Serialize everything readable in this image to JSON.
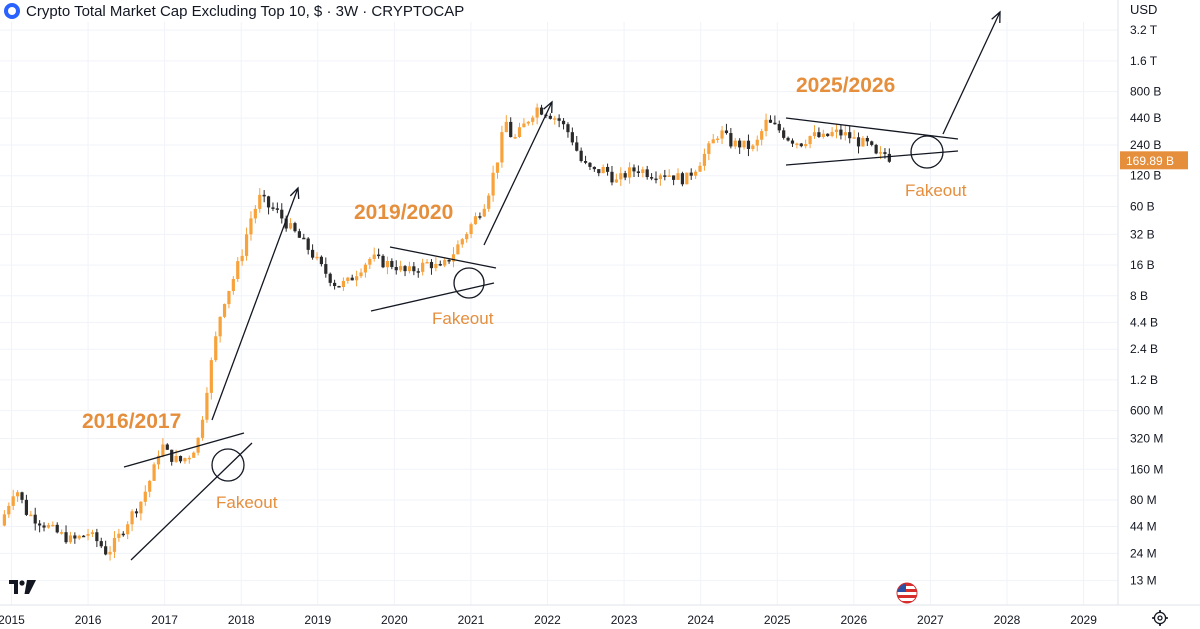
{
  "header": {
    "title": "Crypto Total Market Cap Excluding Top 10, $ · 3W · CRYPTOCAP",
    "logo_icon": "tradingview-symbol-logo-icon"
  },
  "toolbar": {
    "currency_label": "USD",
    "settings_icon": "gear-icon",
    "brand_icon": "tradingview-logo-icon",
    "flag_icon": "us-flag-icon"
  },
  "colors": {
    "up": "#f7a23b",
    "down": "#2a2a2a",
    "annotation": "#e58e3c",
    "price_tag": "#e58e3c",
    "grid": "#f0f3fa"
  },
  "chart_data": {
    "type": "candlestick",
    "title": "Crypto Total Market Cap Excluding Top 10, $ · 3W · CRYPTOCAP",
    "y_scale": "log",
    "ylim": [
      11000000,
      4500000000000
    ],
    "xlim": [
      2014.85,
      2029.45
    ],
    "y_ticks": [
      {
        "label": "3.2 T",
        "value": 3200000000000
      },
      {
        "label": "1.6 T",
        "value": 1600000000000
      },
      {
        "label": "800 B",
        "value": 800000000000
      },
      {
        "label": "440 B",
        "value": 440000000000
      },
      {
        "label": "240 B",
        "value": 240000000000
      },
      {
        "label": "120 B",
        "value": 120000000000
      },
      {
        "label": "60 B",
        "value": 60000000000
      },
      {
        "label": "32 B",
        "value": 32000000000
      },
      {
        "label": "16 B",
        "value": 16000000000
      },
      {
        "label": "8 B",
        "value": 8000000000
      },
      {
        "label": "4.4 B",
        "value": 4400000000
      },
      {
        "label": "2.4 B",
        "value": 2400000000
      },
      {
        "label": "1.2 B",
        "value": 1200000000
      },
      {
        "label": "600 M",
        "value": 600000000
      },
      {
        "label": "320 M",
        "value": 320000000
      },
      {
        "label": "160 M",
        "value": 160000000
      },
      {
        "label": "80 M",
        "value": 80000000
      },
      {
        "label": "44 M",
        "value": 44000000
      },
      {
        "label": "24 M",
        "value": 24000000
      },
      {
        "label": "13 M",
        "value": 13000000
      }
    ],
    "x_ticks": [
      "2015",
      "2016",
      "2017",
      "2018",
      "2019",
      "2020",
      "2021",
      "2022",
      "2023",
      "2024",
      "2025",
      "2026",
      "2027",
      "2028",
      "2029"
    ],
    "last_price": {
      "label": "169.89 B",
      "value": 169890000000
    },
    "close_path": [
      [
        2014.85,
        45000000
      ],
      [
        2014.95,
        70000000
      ],
      [
        2015.05,
        110000000
      ],
      [
        2015.2,
        60000000
      ],
      [
        2015.4,
        48000000
      ],
      [
        2015.6,
        38000000
      ],
      [
        2015.8,
        32000000
      ],
      [
        2016.0,
        38000000
      ],
      [
        2016.15,
        30000000
      ],
      [
        2016.25,
        24000000
      ],
      [
        2016.4,
        35000000
      ],
      [
        2016.55,
        55000000
      ],
      [
        2016.7,
        80000000
      ],
      [
        2016.85,
        150000000
      ],
      [
        2016.95,
        290000000
      ],
      [
        2017.05,
        220000000
      ],
      [
        2017.2,
        190000000
      ],
      [
        2017.35,
        230000000
      ],
      [
        2017.45,
        330000000
      ],
      [
        2017.55,
        1000000000
      ],
      [
        2017.65,
        2600000000
      ],
      [
        2017.75,
        6500000000
      ],
      [
        2017.9,
        12000000000
      ],
      [
        2018.0,
        20000000000
      ],
      [
        2018.12,
        45000000000
      ],
      [
        2018.25,
        75000000000
      ],
      [
        2018.35,
        60000000000
      ],
      [
        2018.45,
        55000000000
      ],
      [
        2018.6,
        40000000000
      ],
      [
        2018.75,
        30000000000
      ],
      [
        2018.9,
        22000000000
      ],
      [
        2019.05,
        15000000000
      ],
      [
        2019.25,
        10000000000
      ],
      [
        2019.4,
        11000000000
      ],
      [
        2019.55,
        15000000000
      ],
      [
        2019.7,
        19000000000
      ],
      [
        2019.85,
        17000000000
      ],
      [
        2020.0,
        16000000000
      ],
      [
        2020.15,
        13500000000
      ],
      [
        2020.3,
        15000000000
      ],
      [
        2020.45,
        17000000000
      ],
      [
        2020.6,
        14500000000
      ],
      [
        2020.75,
        20000000000
      ],
      [
        2020.9,
        30000000000
      ],
      [
        2021.05,
        45000000000
      ],
      [
        2021.2,
        70000000000
      ],
      [
        2021.35,
        180000000000
      ],
      [
        2021.45,
        420000000000
      ],
      [
        2021.55,
        260000000000
      ],
      [
        2021.7,
        380000000000
      ],
      [
        2021.85,
        560000000000
      ],
      [
        2022.0,
        500000000000
      ],
      [
        2022.15,
        420000000000
      ],
      [
        2022.3,
        300000000000
      ],
      [
        2022.45,
        160000000000
      ],
      [
        2022.6,
        130000000000
      ],
      [
        2022.75,
        140000000000
      ],
      [
        2022.9,
        105000000000
      ],
      [
        2023.05,
        130000000000
      ],
      [
        2023.2,
        140000000000
      ],
      [
        2023.35,
        125000000000
      ],
      [
        2023.5,
        130000000000
      ],
      [
        2023.65,
        120000000000
      ],
      [
        2023.8,
        110000000000
      ],
      [
        2023.95,
        150000000000
      ],
      [
        2024.1,
        220000000000
      ],
      [
        2024.25,
        330000000000
      ],
      [
        2024.4,
        250000000000
      ],
      [
        2024.55,
        240000000000
      ],
      [
        2024.7,
        220000000000
      ],
      [
        2024.85,
        400000000000
      ],
      [
        2025.0,
        350000000000
      ],
      [
        2025.15,
        280000000000
      ],
      [
        2025.3,
        250000000000
      ],
      [
        2025.45,
        300000000000
      ],
      [
        2025.6,
        280000000000
      ],
      [
        2025.75,
        320000000000
      ],
      [
        2025.9,
        300000000000
      ],
      [
        2026.05,
        260000000000
      ],
      [
        2026.2,
        240000000000
      ],
      [
        2026.3,
        180000000000
      ],
      [
        2026.42,
        200000000000
      ],
      [
        2026.5,
        169890000000
      ]
    ],
    "annotations": [
      {
        "text": "2016/2017",
        "kind": "cycle-label"
      },
      {
        "text": "2019/2020",
        "kind": "cycle-label"
      },
      {
        "text": "2025/2026",
        "kind": "cycle-label"
      },
      {
        "text": "Fakeout",
        "kind": "fakeout-label"
      },
      {
        "text": "Fakeout",
        "kind": "fakeout-label"
      },
      {
        "text": "Fakeout",
        "kind": "fakeout-label"
      }
    ]
  }
}
